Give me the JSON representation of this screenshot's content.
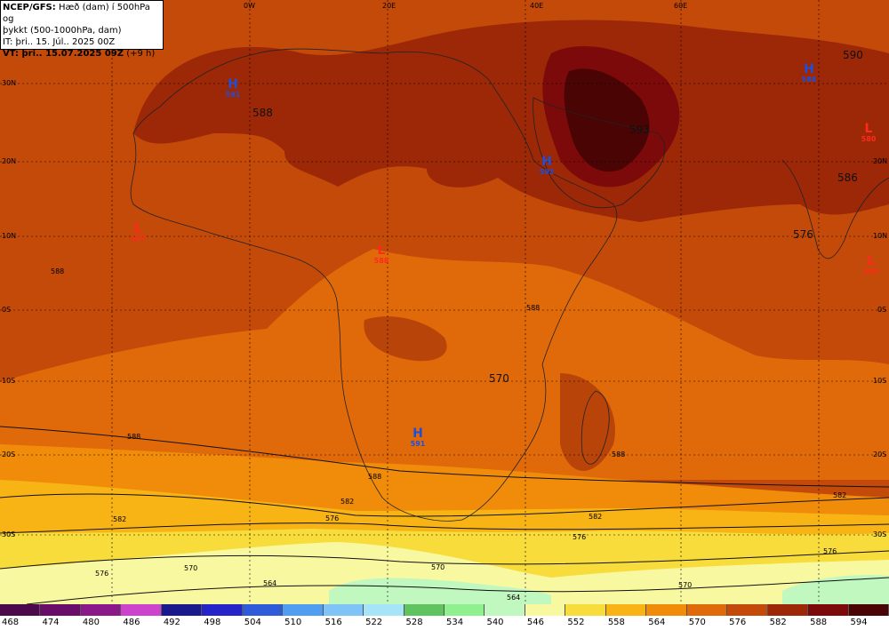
{
  "title": {
    "line1_bold": "NCEP/GFS:",
    "line1": "Hæð (dam) í 500hPa og",
    "line2": "þykkt (500-1000hPa, dam)",
    "line3": "IT: þri.. 15. Júl.. 2025 00Z",
    "line4_bold": "VT: þri.. 15.07.2025 09Z",
    "line4": "(+9 h)"
  },
  "grid_labels": {
    "top": [
      "0W",
      "20E",
      "40E",
      "60E"
    ],
    "left": [
      "30N",
      "20N",
      "10N",
      "0S",
      "10S",
      "20S",
      "30S"
    ],
    "right": [
      "20N",
      "10N",
      "0S",
      "10S",
      "20S",
      "30S"
    ]
  },
  "pressure_centers": [
    {
      "kind": "H",
      "value": "591"
    },
    {
      "kind": "H",
      "value": "592"
    },
    {
      "kind": "H",
      "value": "588"
    },
    {
      "kind": "H",
      "value": "591"
    },
    {
      "kind": "L",
      "value": "587"
    },
    {
      "kind": "L",
      "value": "588"
    },
    {
      "kind": "L",
      "value": "580"
    },
    {
      "kind": "L",
      "value": "583"
    }
  ],
  "height_labels": [
    "588",
    "593",
    "590",
    "586",
    "576",
    "570"
  ],
  "contour_labels": [
    "588",
    "588",
    "588",
    "588",
    "582",
    "582",
    "582",
    "576",
    "576",
    "576",
    "576",
    "570",
    "570",
    "570",
    "564",
    "564",
    "582",
    "588"
  ],
  "legend": {
    "ticks": [
      "468",
      "474",
      "480",
      "486",
      "492",
      "498",
      "504",
      "510",
      "516",
      "522",
      "528",
      "534",
      "540",
      "546",
      "552",
      "558",
      "564",
      "570",
      "576",
      "582",
      "588",
      "594"
    ],
    "colors": [
      "#4c0a4c",
      "#6a0d6a",
      "#8a1a8a",
      "#cc44cc",
      "#1a1a8c",
      "#2424c8",
      "#2f5ad8",
      "#4f9ef0",
      "#7fc4f6",
      "#a8e4f8",
      "#5fc45f",
      "#8ff08f",
      "#c0f8c0",
      "#f8f8a0",
      "#f8dc3c",
      "#f8b414",
      "#f08c0a",
      "#e06a0a",
      "#c44a0a",
      "#9c2808",
      "#7c0a0a",
      "#4a0404"
    ]
  }
}
